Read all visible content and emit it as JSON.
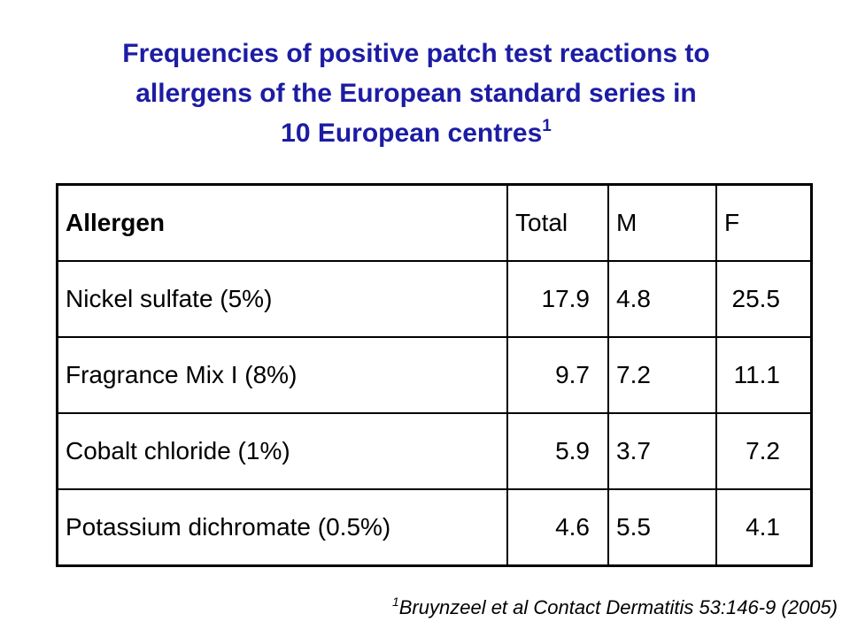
{
  "title": {
    "lines": [
      "Frequencies of positive patch test reactions to",
      "allergens of the European standard series in",
      "10 European centres"
    ],
    "superscript": "1"
  },
  "table": {
    "header": [
      "Allergen",
      "Total",
      "M",
      "F"
    ],
    "rows": [
      [
        "Nickel sulfate (5%)",
        "17.9",
        "4.8",
        "25.5"
      ],
      [
        "Fragrance Mix I (8%)",
        "9.7",
        "7.2",
        "11.1"
      ],
      [
        "Cobalt chloride (1%)",
        "5.9",
        "3.7",
        "7.2"
      ],
      [
        "Potassium dichromate (0.5%)",
        "4.6",
        "5.5",
        "4.1"
      ]
    ]
  },
  "footnote": {
    "marker": "1",
    "text": "Bruynzeel et al Contact Dermatitis 53:146-9 (2005)"
  }
}
